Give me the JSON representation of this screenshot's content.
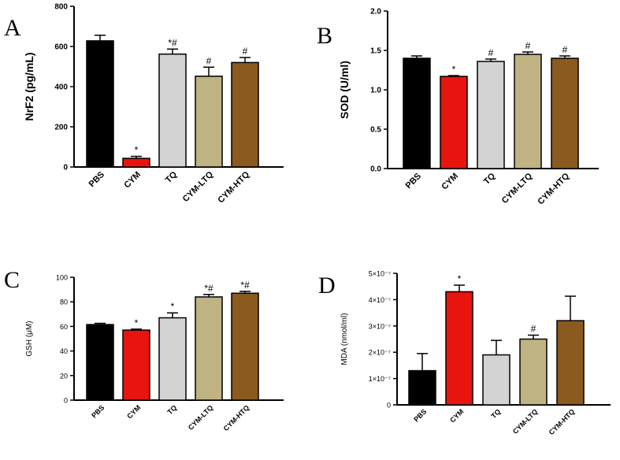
{
  "figure": {
    "panels": [
      {
        "id": "A",
        "letter": "A"
      },
      {
        "id": "B",
        "letter": "B"
      },
      {
        "id": "C",
        "letter": "C"
      },
      {
        "id": "D",
        "letter": "D"
      }
    ]
  },
  "chart_data": [
    {
      "panel": "A",
      "type": "bar",
      "title": "",
      "xlabel": "",
      "ylabel": "NrF2 (pg/mL)",
      "categories": [
        "PBS",
        "CYM",
        "TQ",
        "CYM-LTQ",
        "CYM-HTQ"
      ],
      "values": [
        628,
        43,
        562,
        452,
        520
      ],
      "errors": [
        28,
        10,
        25,
        45,
        25
      ],
      "significance": [
        "",
        "*",
        "*#",
        "#",
        "#"
      ],
      "colors": [
        "#000000",
        "#e8140e",
        "#d3d3d3",
        "#bfb283",
        "#8b5a1e"
      ],
      "ylim": [
        0,
        800
      ],
      "yticks": [
        0,
        200,
        400,
        600,
        800
      ],
      "ytick_labels": [
        "0",
        "200",
        "400",
        "600",
        "800"
      ]
    },
    {
      "panel": "B",
      "type": "bar",
      "title": "",
      "xlabel": "",
      "ylabel": "SOD  (U/ml)",
      "categories": [
        "PBS",
        "CYM",
        "TQ",
        "CYM-LTQ",
        "CYM-HTQ"
      ],
      "values": [
        1.4,
        1.17,
        1.36,
        1.45,
        1.4
      ],
      "errors": [
        0.03,
        0.01,
        0.03,
        0.03,
        0.03
      ],
      "significance": [
        "",
        "*",
        "#",
        "#",
        "#"
      ],
      "colors": [
        "#000000",
        "#e8140e",
        "#d3d3d3",
        "#bfb283",
        "#8b5a1e"
      ],
      "ylim": [
        0,
        2.0
      ],
      "yticks": [
        0,
        0.5,
        1.0,
        1.5,
        2.0
      ],
      "ytick_labels": [
        "0.0",
        "0.5",
        "1.0",
        "1.5",
        "2.0"
      ]
    },
    {
      "panel": "C",
      "type": "bar",
      "title": "",
      "xlabel": "",
      "ylabel": "GSH (μM)",
      "categories": [
        "PBS",
        "CYM",
        "TQ",
        "CYM-LTQ",
        "CYM-HTQ"
      ],
      "values": [
        61.5,
        57,
        67,
        84,
        87
      ],
      "errors": [
        1,
        0.8,
        4,
        2,
        1.5
      ],
      "significance": [
        "",
        "*",
        "*",
        "*#",
        "*#"
      ],
      "colors": [
        "#000000",
        "#e8140e",
        "#d3d3d3",
        "#bfb283",
        "#8b5a1e"
      ],
      "ylim": [
        0,
        100
      ],
      "yticks": [
        0,
        20,
        40,
        60,
        80,
        100
      ],
      "ytick_labels": [
        "0",
        "20",
        "40",
        "60",
        "80",
        "100"
      ]
    },
    {
      "panel": "D",
      "type": "bar",
      "title": "",
      "xlabel": "",
      "ylabel": "MDA (nmol/ml)",
      "categories": [
        "PBS",
        "CYM",
        "TQ",
        "CYM-LTQ",
        "CYM-HTQ"
      ],
      "values": [
        1.3e-07,
        4.3e-07,
        1.9e-07,
        2.5e-07,
        3.2e-07
      ],
      "errors": [
        6.5e-08,
        2.5e-08,
        5.5e-08,
        1.5e-08,
        9.3e-08
      ],
      "significance": [
        "",
        "*",
        "",
        "#",
        ""
      ],
      "colors": [
        "#000000",
        "#e8140e",
        "#d3d3d3",
        "#bfb283",
        "#8b5a1e"
      ],
      "ylim": [
        0,
        5e-07
      ],
      "yticks": [
        0,
        1e-07,
        2e-07,
        3e-07,
        4e-07,
        5e-07
      ],
      "ytick_labels": [
        "0",
        "1×10⁻⁷",
        "2×10⁻⁷",
        "3×10⁻⁷",
        "4×10⁻⁷",
        "5×10⁻⁷"
      ]
    }
  ]
}
